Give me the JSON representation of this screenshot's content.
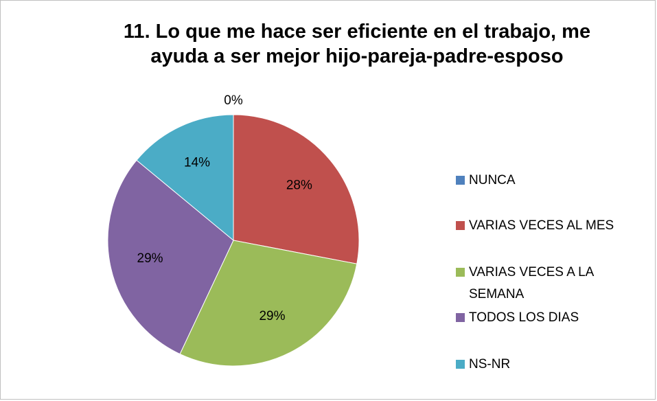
{
  "chart_data": {
    "type": "pie",
    "title": "11. Lo que me hace ser eficiente en el trabajo, me ayuda a ser mejor hijo-pareja-padre-esposo",
    "categories": [
      "NUNCA",
      "VARIAS VECES AL MES",
      "VARIAS VECES A LA SEMANA",
      "TODOS LOS DIAS",
      "NS-NR"
    ],
    "values": [
      0,
      28,
      29,
      29,
      14
    ],
    "value_labels": [
      "0%",
      "28%",
      "29%",
      "29%",
      "14%"
    ],
    "colors": [
      "#4f81bd",
      "#c0504d",
      "#9bbb59",
      "#8064a2",
      "#4bacc6"
    ],
    "legend": "right"
  }
}
